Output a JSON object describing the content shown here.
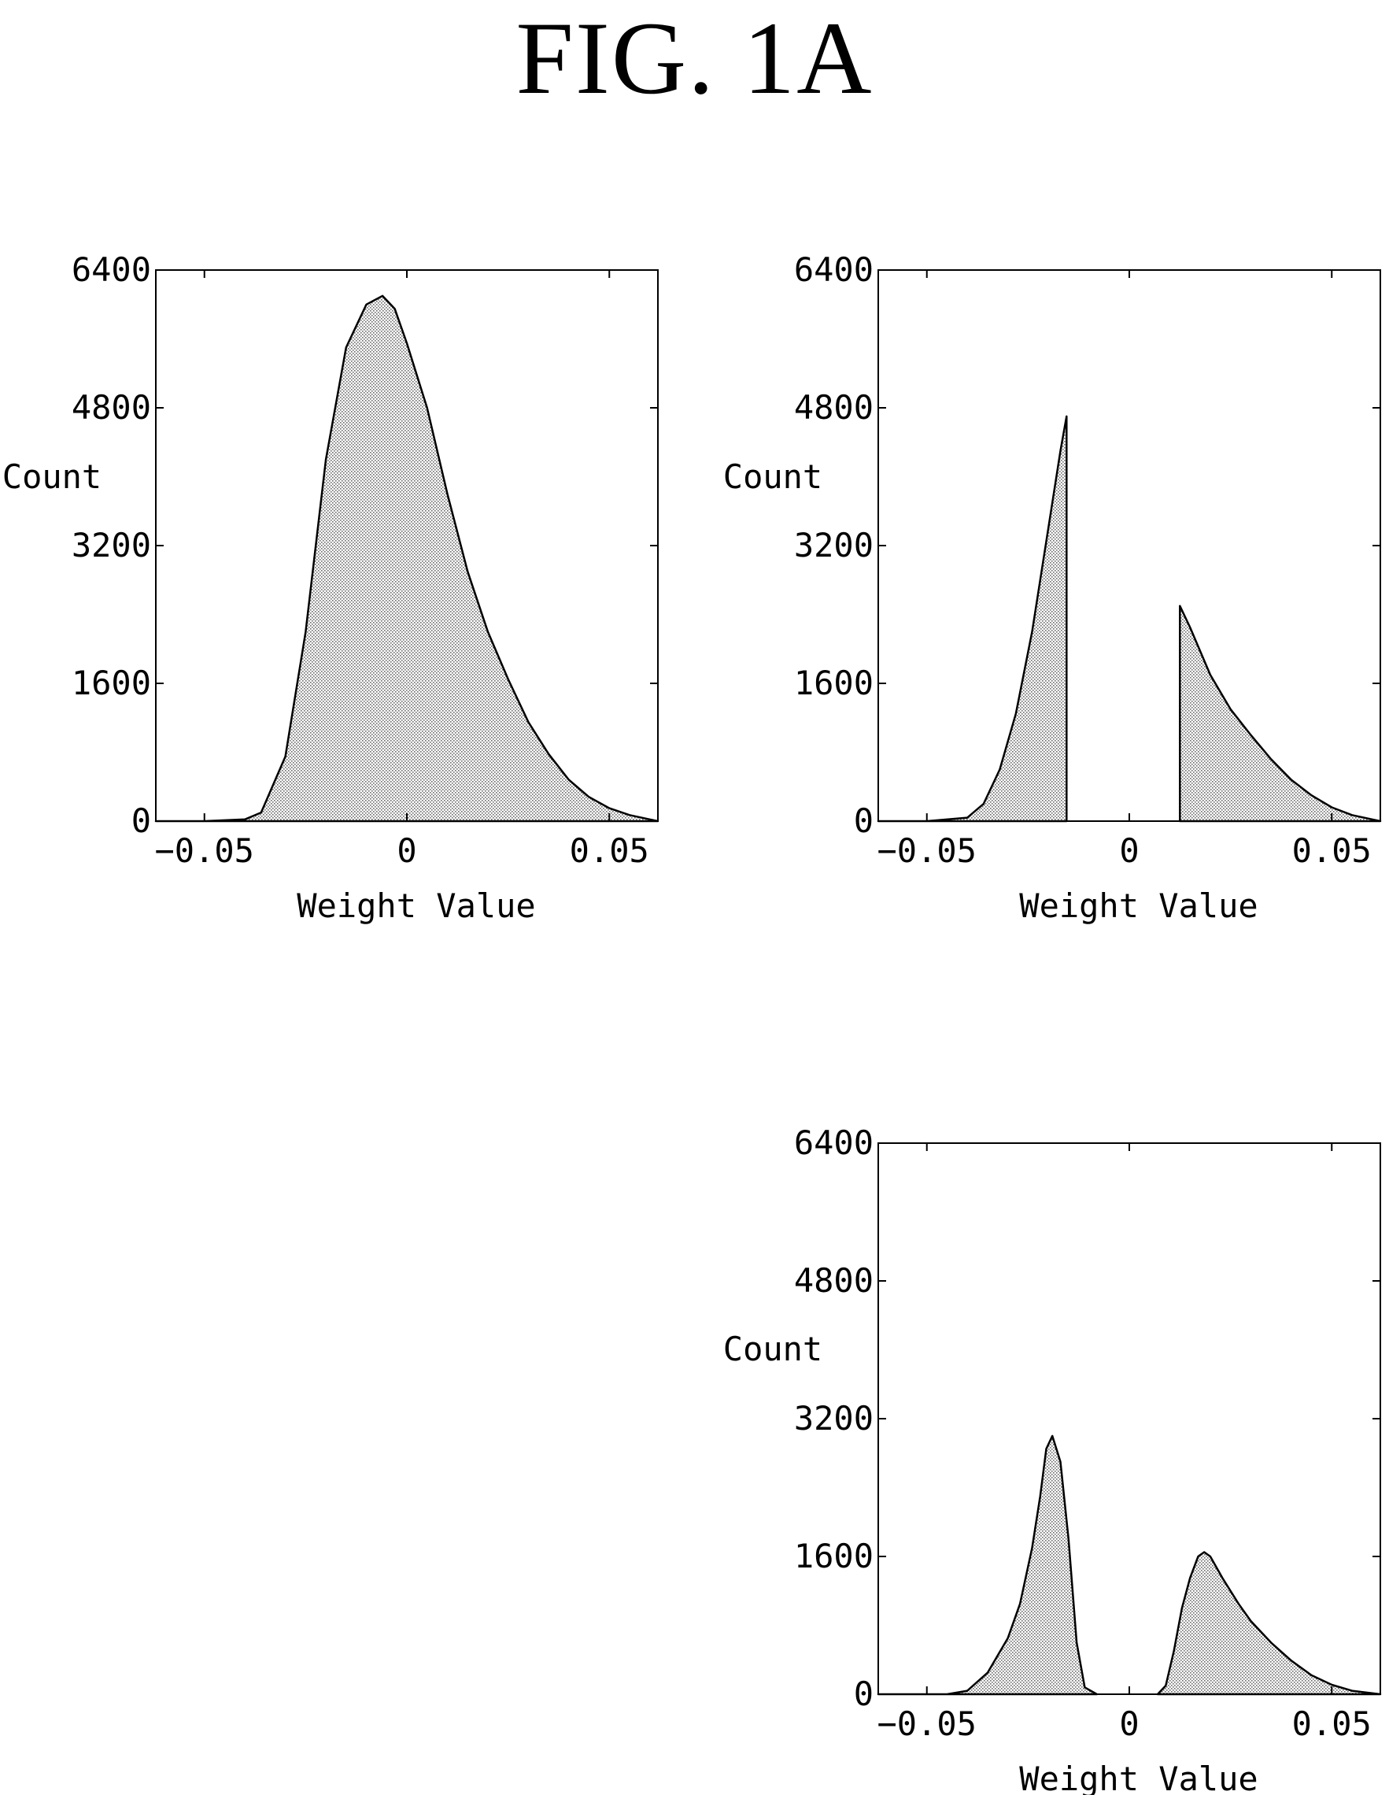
{
  "figure_title": "FIG. 1A",
  "chart_data": [
    {
      "type": "area",
      "xlabel": "Weight Value",
      "ylabel": "Count",
      "xlim": [
        -0.062,
        0.062
      ],
      "ylim": [
        0,
        6400
      ],
      "x_ticks": [
        -0.05,
        0,
        0.05
      ],
      "x_tick_labels": [
        "−0.05",
        "0",
        "0.05"
      ],
      "y_ticks": [
        0,
        1600,
        3200,
        4800,
        6400
      ],
      "y_tick_labels": [
        "0",
        "1600",
        "3200",
        "4800",
        "6400"
      ],
      "grid": false,
      "series": [
        {
          "x": [
            -0.062,
            -0.05,
            -0.04,
            -0.036,
            -0.03,
            -0.025,
            -0.02,
            -0.015,
            -0.01,
            -0.006,
            -0.003,
            0.0,
            0.005,
            0.01,
            0.015,
            0.02,
            0.025,
            0.03,
            0.035,
            0.04,
            0.045,
            0.05,
            0.055,
            0.06,
            0.062
          ],
          "y": [
            0,
            0,
            20,
            100,
            750,
            2200,
            4200,
            5500,
            6000,
            6100,
            5950,
            5550,
            4800,
            3800,
            2900,
            2200,
            1650,
            1150,
            780,
            480,
            280,
            150,
            70,
            20,
            0
          ]
        }
      ]
    },
    {
      "type": "area",
      "xlabel": "Weight Value",
      "ylabel": "Count",
      "xlim": [
        -0.062,
        0.062
      ],
      "ylim": [
        0,
        6400
      ],
      "x_ticks": [
        -0.05,
        0,
        0.05
      ],
      "x_tick_labels": [
        "−0.05",
        "0",
        "0.05"
      ],
      "y_ticks": [
        0,
        1600,
        3200,
        4800,
        6400
      ],
      "y_tick_labels": [
        "0",
        "1600",
        "3200",
        "4800",
        "6400"
      ],
      "grid": false,
      "series": [
        {
          "x": [
            -0.062,
            -0.05,
            -0.04,
            -0.036,
            -0.032,
            -0.028,
            -0.024,
            -0.02,
            -0.017,
            -0.0155,
            -0.0155
          ],
          "y": [
            0,
            0,
            40,
            200,
            600,
            1250,
            2200,
            3400,
            4300,
            4700,
            0
          ]
        },
        {
          "x": [
            0.0125,
            0.0125,
            0.015,
            0.02,
            0.025,
            0.03,
            0.035,
            0.04,
            0.045,
            0.05,
            0.055,
            0.06,
            0.062
          ],
          "y": [
            0,
            2500,
            2250,
            1700,
            1300,
            1000,
            720,
            480,
            300,
            160,
            70,
            20,
            0
          ]
        }
      ]
    },
    {
      "type": "area",
      "xlabel": "Weight Value",
      "ylabel": "Count",
      "xlim": [
        -0.062,
        0.062
      ],
      "ylim": [
        0,
        6400
      ],
      "x_ticks": [
        -0.05,
        0,
        0.05
      ],
      "x_tick_labels": [
        "−0.05",
        "0",
        "0.05"
      ],
      "y_ticks": [
        0,
        1600,
        3200,
        4800,
        6400
      ],
      "y_tick_labels": [
        "0",
        "1600",
        "3200",
        "4800",
        "6400"
      ],
      "grid": false,
      "series": [
        {
          "x": [
            -0.062,
            -0.045,
            -0.04,
            -0.035,
            -0.03,
            -0.027,
            -0.024,
            -0.022,
            -0.0205,
            -0.019,
            -0.017,
            -0.015,
            -0.013,
            -0.011,
            -0.008
          ],
          "y": [
            0,
            0,
            40,
            250,
            650,
            1050,
            1700,
            2300,
            2850,
            3000,
            2700,
            1800,
            600,
            80,
            0
          ]
        },
        {
          "x": [
            0.007,
            0.009,
            0.011,
            0.013,
            0.015,
            0.017,
            0.0185,
            0.02,
            0.023,
            0.027,
            0.03,
            0.035,
            0.04,
            0.045,
            0.05,
            0.055,
            0.062
          ],
          "y": [
            0,
            100,
            500,
            1000,
            1350,
            1600,
            1650,
            1600,
            1350,
            1050,
            850,
            600,
            390,
            220,
            110,
            40,
            0
          ]
        }
      ]
    }
  ]
}
